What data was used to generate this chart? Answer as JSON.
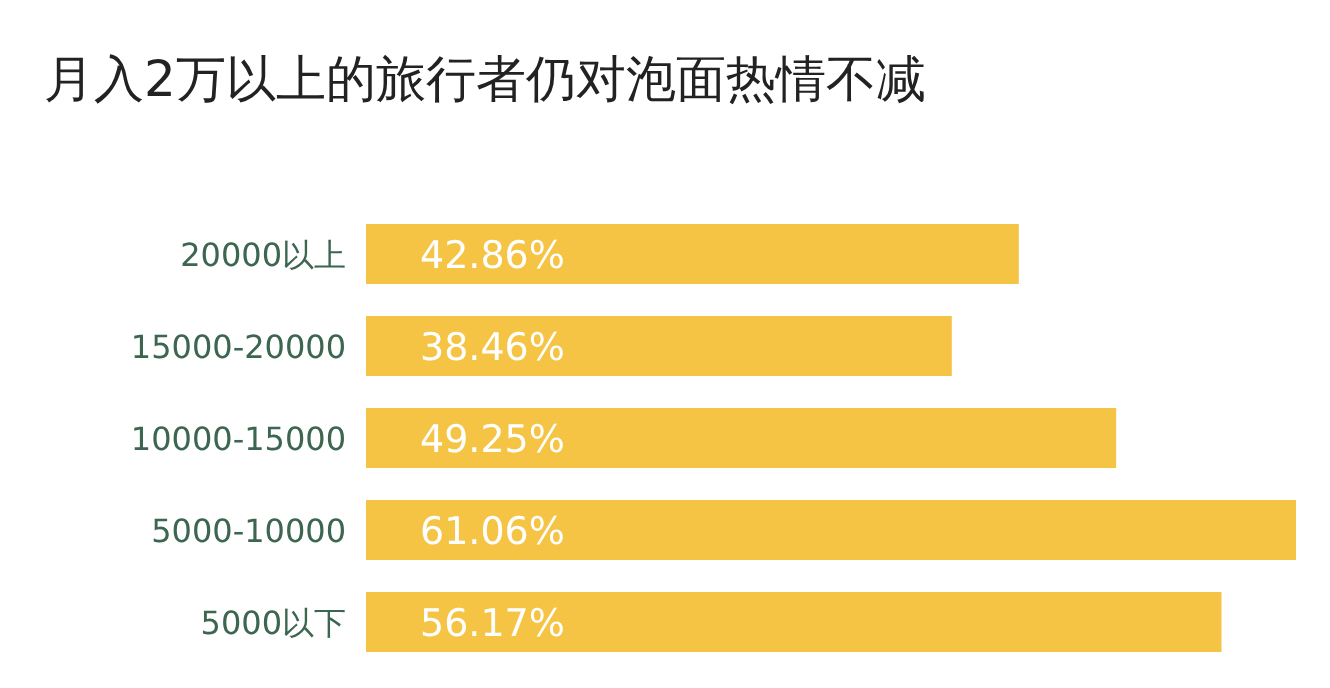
{
  "chart_data": {
    "type": "bar",
    "orientation": "horizontal",
    "title": "月入2万以上的旅行者仍对泡面热情不减",
    "categories": [
      "20000以上",
      "15000-20000",
      "10000-15000",
      "5000-10000",
      "5000以下"
    ],
    "values": [
      42.86,
      38.46,
      49.25,
      61.06,
      56.17
    ],
    "value_labels": [
      "42.86%",
      "38.46%",
      "49.25%",
      "61.06%",
      "56.17%"
    ],
    "color": "#f5c445"
  }
}
